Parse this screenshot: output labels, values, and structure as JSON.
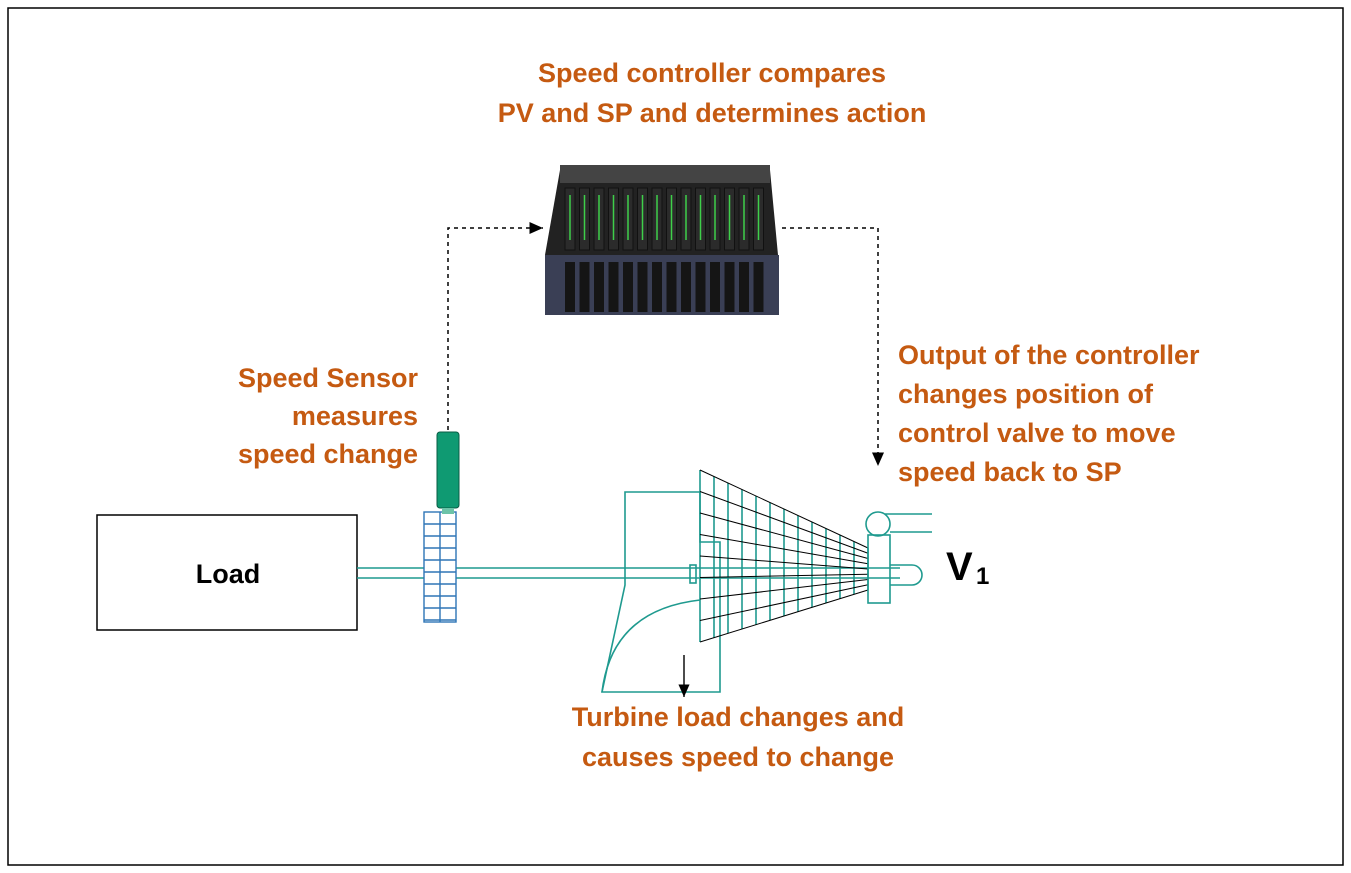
{
  "controller_label": {
    "lines": [
      "Speed controller compares",
      "PV and SP and determines action"
    ]
  },
  "sensor_label": {
    "lines": [
      "Speed Sensor",
      "measures",
      "speed change"
    ]
  },
  "output_label": {
    "lines": [
      "Output of the controller",
      "changes position of",
      "control valve to move",
      "speed back to SP"
    ]
  },
  "turbine_label": {
    "lines": [
      "Turbine load changes and",
      "causes speed to change"
    ]
  },
  "load_box": {
    "label": "Load"
  },
  "valve_label": {
    "main": "V",
    "subscript": "1"
  }
}
